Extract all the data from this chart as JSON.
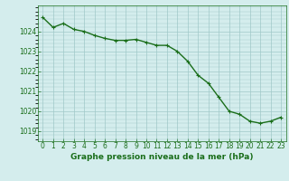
{
  "hours": [
    0,
    1,
    2,
    3,
    4,
    5,
    6,
    7,
    8,
    9,
    10,
    11,
    12,
    13,
    14,
    15,
    16,
    17,
    18,
    19,
    20,
    21,
    22,
    23
  ],
  "pressure": [
    1024.7,
    1024.2,
    1024.4,
    1024.1,
    1024.0,
    1023.8,
    1023.65,
    1023.55,
    1023.55,
    1023.6,
    1023.45,
    1023.3,
    1023.3,
    1023.0,
    1022.5,
    1021.8,
    1021.4,
    1020.7,
    1020.0,
    1019.85,
    1019.5,
    1019.4,
    1019.5,
    1019.7
  ],
  "line_color": "#1a6e1a",
  "marker_color": "#1a6e1a",
  "bg_color": "#d4eded",
  "grid_color": "#a0c8c8",
  "axis_label_color": "#1a6e1a",
  "xlabel": "Graphe pression niveau de la mer (hPa)",
  "ylim": [
    1018.5,
    1025.3
  ],
  "yticks": [
    1019,
    1020,
    1021,
    1022,
    1023,
    1024
  ],
  "xlim": [
    -0.5,
    23.5
  ],
  "xticks": [
    0,
    1,
    2,
    3,
    4,
    5,
    6,
    7,
    8,
    9,
    10,
    11,
    12,
    13,
    14,
    15,
    16,
    17,
    18,
    19,
    20,
    21,
    22,
    23
  ],
  "xlabel_fontsize": 6.5,
  "tick_fontsize": 5.5,
  "line_width": 1.0,
  "marker_size": 2.5
}
